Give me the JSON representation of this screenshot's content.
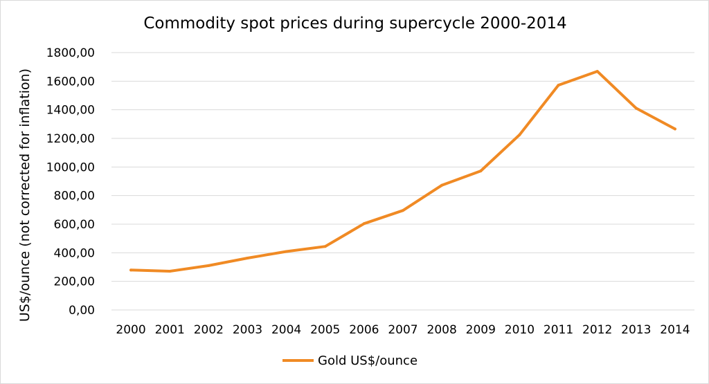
{
  "chart_data": {
    "type": "line",
    "title": "Commodity spot prices during supercycle 2000-2014",
    "xlabel": "",
    "ylabel": "US$/ounce (not corrected for inflation)",
    "categories": [
      "2000",
      "2001",
      "2002",
      "2003",
      "2004",
      "2005",
      "2006",
      "2007",
      "2008",
      "2009",
      "2010",
      "2011",
      "2012",
      "2013",
      "2014"
    ],
    "yticks": [
      "0,00",
      "200,00",
      "400,00",
      "600,00",
      "800,00",
      "1000,00",
      "1200,00",
      "1400,00",
      "1600,00",
      "1800,00"
    ],
    "ylim": [
      0,
      1800
    ],
    "grid": true,
    "legend_position": "bottom",
    "series": [
      {
        "name": "Gold US$/ounce",
        "color": "#f08a24",
        "values": [
          279,
          271,
          310,
          363,
          409,
          444,
          604,
          696,
          872,
          972,
          1225,
          1572,
          1669,
          1411,
          1266
        ]
      }
    ]
  }
}
